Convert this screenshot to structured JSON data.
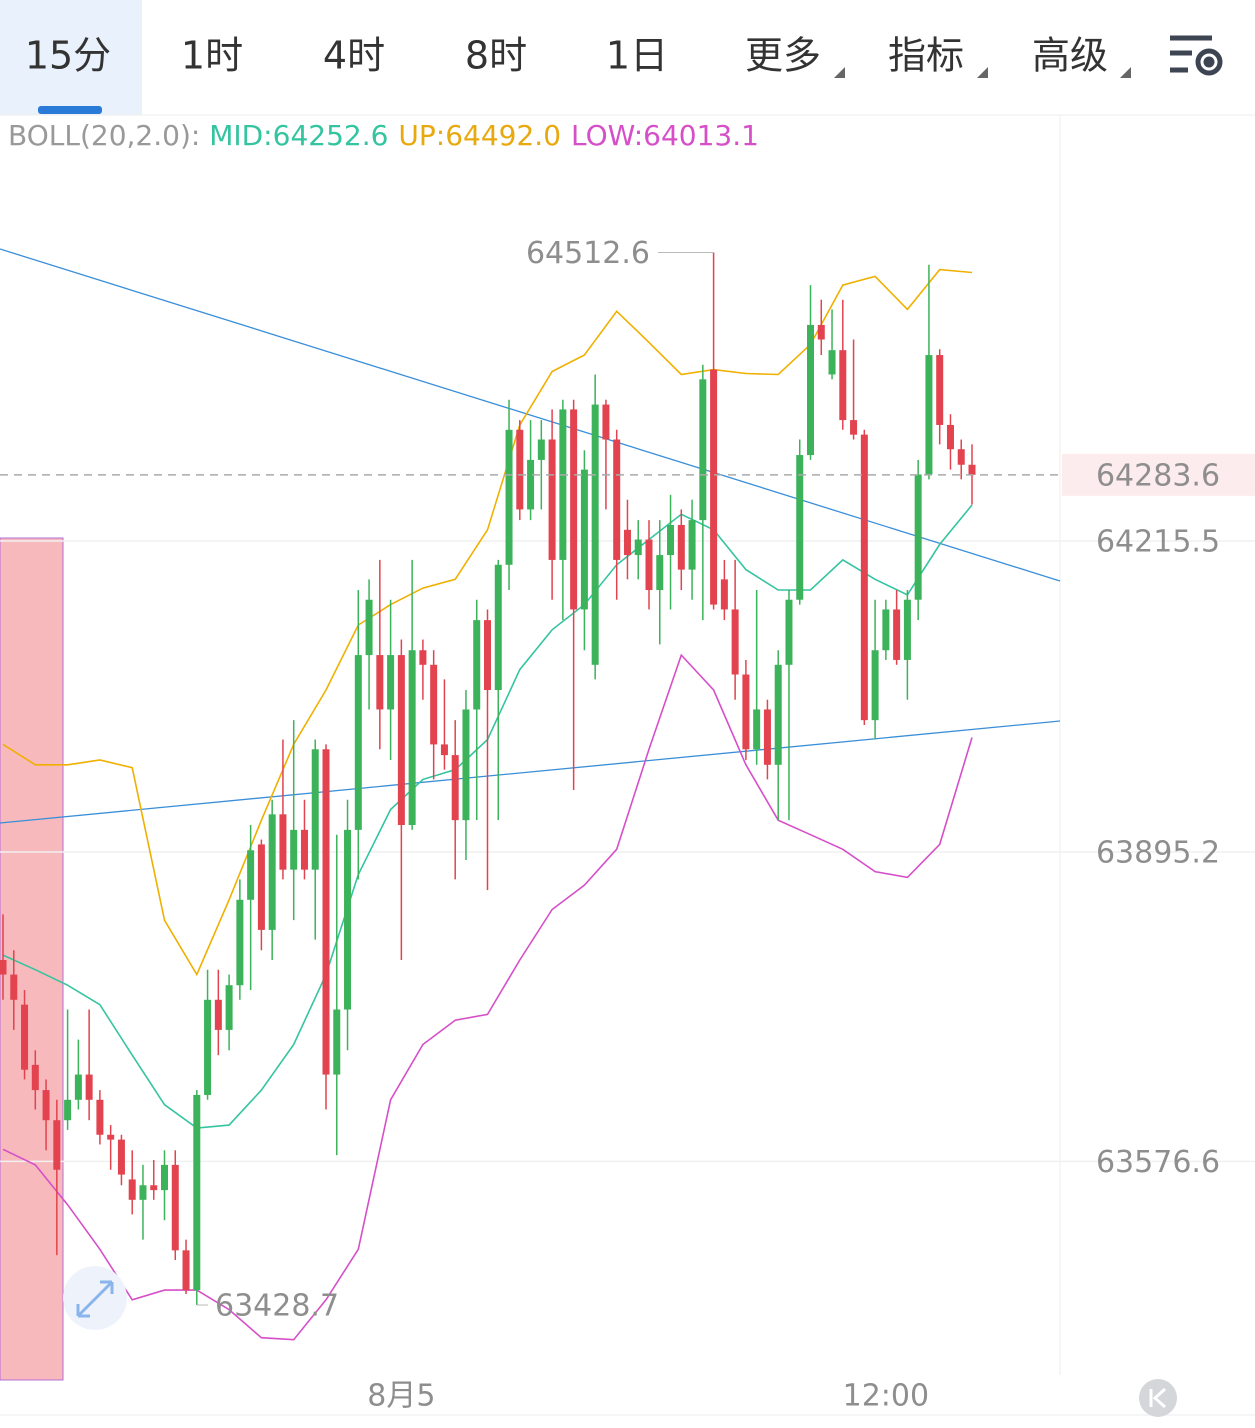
{
  "tabs": [
    "15分",
    "1时",
    "4时",
    "8时",
    "1日",
    "更多",
    "指标",
    "高级"
  ],
  "active_tab": 0,
  "readout": {
    "label": "BOLL(20,2.0):",
    "items": [
      {
        "name": "MID:",
        "value": "64252.6",
        "color": "#35c4a0"
      },
      {
        "name": "UP:",
        "value": "64492.0",
        "color": "#e8a90f"
      },
      {
        "name": "LOW:",
        "value": "64013.1",
        "color": "#d64fc8"
      }
    ]
  },
  "chart_data": {
    "type": "candlestick",
    "up_color": "#3cb35a",
    "down_color": "#e2434f",
    "ylim": [
      63356.6,
      64654.2
    ],
    "yticks": [
      64215.5,
      63895.2,
      63576.6
    ],
    "grid": true,
    "categories": [
      null,
      null,
      null,
      null,
      null,
      null,
      null,
      null,
      null,
      null,
      null,
      null,
      null,
      null,
      null,
      null,
      null,
      null,
      null,
      null,
      null,
      null,
      null,
      null,
      null,
      null,
      null,
      null,
      null,
      null,
      null,
      null,
      null,
      null,
      null,
      null,
      null,
      "8月5",
      null,
      null,
      null,
      null,
      null,
      null,
      null,
      null,
      null,
      null,
      null,
      null,
      null,
      null,
      null,
      null,
      null,
      null,
      null,
      null,
      null,
      null,
      null,
      null,
      null,
      null,
      null,
      null,
      null,
      null,
      null,
      null,
      null,
      null,
      null,
      null,
      null,
      null,
      null,
      null,
      null,
      null,
      null,
      null,
      "12:00",
      null,
      null,
      null,
      null,
      null,
      null,
      null,
      null
    ],
    "ohlc": [
      [
        63784,
        63831,
        63743,
        63769
      ],
      [
        63769,
        63794,
        63712,
        63743
      ],
      [
        63738,
        63753,
        63661,
        63671
      ],
      [
        63676,
        63691,
        63630,
        63650
      ],
      [
        63650,
        63661,
        63588,
        63619
      ],
      [
        63619,
        63640,
        63480,
        63568
      ],
      [
        63619,
        63733,
        63609,
        63640
      ],
      [
        63640,
        63702,
        63630,
        63666
      ],
      [
        63666,
        63733,
        63619,
        63640
      ],
      [
        63640,
        63650,
        63594,
        63604
      ],
      [
        63604,
        63614,
        63568,
        63599
      ],
      [
        63599,
        63604,
        63552,
        63563
      ],
      [
        63558,
        63588,
        63522,
        63537
      ],
      [
        63537,
        63573,
        63496,
        63552
      ],
      [
        63552,
        63578,
        63537,
        63547
      ],
      [
        63547,
        63588,
        63516,
        63573
      ],
      [
        63573,
        63588,
        63475,
        63485
      ],
      [
        63485,
        63496,
        63440,
        63444
      ],
      [
        63444,
        63650,
        63428.7,
        63645
      ],
      [
        63645,
        63774,
        63640,
        63743
      ],
      [
        63743,
        63774,
        63686,
        63712
      ],
      [
        63712,
        63769,
        63691,
        63758
      ],
      [
        63758,
        63867,
        63743,
        63846
      ],
      [
        63846,
        63923,
        63753,
        63897
      ],
      [
        63903,
        63908,
        63794,
        63815
      ],
      [
        63815,
        63949,
        63784,
        63934
      ],
      [
        63934,
        64011,
        63867,
        63877
      ],
      [
        63877,
        64031,
        63825,
        63918
      ],
      [
        63918,
        63949,
        63867,
        63877
      ],
      [
        63877,
        64011,
        63805,
        64001
      ],
      [
        64001,
        64006,
        63630,
        63666
      ],
      [
        63666,
        63913,
        63583,
        63733
      ],
      [
        63733,
        63949,
        63691,
        63918
      ],
      [
        63918,
        64165,
        63867,
        64098
      ],
      [
        64098,
        64176,
        64042,
        64155
      ],
      [
        64098,
        64196,
        64001,
        64042
      ],
      [
        64042,
        64155,
        63990,
        64098
      ],
      [
        64098,
        64114,
        63784,
        63923
      ],
      [
        63923,
        64196,
        63918,
        64103
      ],
      [
        64103,
        64114,
        64052,
        64088
      ],
      [
        64088,
        64103,
        63970,
        64006
      ],
      [
        64006,
        64073,
        63980,
        63995
      ],
      [
        63995,
        64031,
        63867,
        63928
      ],
      [
        63928,
        64062,
        63887,
        64042
      ],
      [
        64042,
        64155,
        63928,
        64134
      ],
      [
        64134,
        64145,
        63856,
        64062
      ],
      [
        64062,
        64196,
        63928,
        64191
      ],
      [
        64191,
        64361,
        64165,
        64330
      ],
      [
        64330,
        64340,
        64237,
        64248
      ],
      [
        64248,
        64340,
        64237,
        64299
      ],
      [
        64299,
        64340,
        64248,
        64320
      ],
      [
        64320,
        64351,
        64155,
        64196
      ],
      [
        64196,
        64361,
        64134,
        64351
      ],
      [
        64351,
        64361,
        63959,
        64145
      ],
      [
        64145,
        64309,
        64103,
        64289
      ],
      [
        64088,
        64387,
        64073,
        64356
      ],
      [
        64356,
        64361,
        64248,
        64320
      ],
      [
        64320,
        64330,
        64155,
        64196
      ],
      [
        64227,
        64258,
        64176,
        64201
      ],
      [
        64201,
        64237,
        64176,
        64217
      ],
      [
        64217,
        64237,
        64145,
        64165
      ],
      [
        64165,
        64237,
        64109,
        64201
      ],
      [
        64201,
        64263,
        64145,
        64232
      ],
      [
        64232,
        64248,
        64165,
        64186
      ],
      [
        64186,
        64258,
        64155,
        64237
      ],
      [
        64237,
        64397,
        64134,
        64382
      ],
      [
        64392,
        64512.6,
        64145,
        64150
      ],
      [
        64176,
        64196,
        64134,
        64145
      ],
      [
        64145,
        64196,
        64052,
        64078
      ],
      [
        64078,
        64093,
        63990,
        64001
      ],
      [
        64001,
        64165,
        63985,
        64042
      ],
      [
        64042,
        64052,
        63970,
        63985
      ],
      [
        63985,
        64103,
        63928,
        64088
      ],
      [
        64088,
        64165,
        63928,
        64155
      ],
      [
        64155,
        64320,
        64150,
        64304
      ],
      [
        64304,
        64479,
        64299,
        64438
      ],
      [
        64438,
        64464,
        64407,
        64423
      ],
      [
        64387,
        64454,
        64382,
        64412
      ],
      [
        64412,
        64464,
        64330,
        64340
      ],
      [
        64340,
        64423,
        64320,
        64325
      ],
      [
        64325,
        64330,
        64026,
        64031
      ],
      [
        64031,
        64155,
        64011,
        64103
      ],
      [
        64103,
        64155,
        64093,
        64145
      ],
      [
        64145,
        64165,
        64088,
        64093
      ],
      [
        64093,
        64165,
        64052,
        64155
      ],
      [
        64155,
        64299,
        64134,
        64284
      ],
      [
        64284,
        64500,
        64279,
        64407
      ],
      [
        64407,
        64413,
        64315,
        64335
      ],
      [
        64335,
        64346,
        64289,
        64310
      ],
      [
        64310,
        64320,
        64279,
        64294
      ],
      [
        64294,
        64315,
        64253,
        64283.6
      ]
    ],
    "bands": [
      {
        "color": "#35c4a0",
        "x": [
          0,
          3,
          6,
          9,
          12,
          15,
          18,
          21,
          24,
          27,
          30,
          33,
          36,
          39,
          42,
          45,
          48,
          51,
          54,
          57,
          60,
          63,
          66,
          69,
          72,
          75,
          78,
          81,
          84,
          87,
          90
        ],
        "values": [
          63789,
          63774,
          63758,
          63738,
          63686,
          63635,
          63611,
          63614,
          63650,
          63697,
          63769,
          63872,
          63939,
          63970,
          63980,
          64011,
          64083,
          64124,
          64150,
          64191,
          64217,
          64243,
          64227,
          64186,
          64165,
          64165,
          64196,
          64176,
          64160,
          64212,
          64252.6
        ]
      },
      {
        "color": "#f0b000",
        "x": [
          0,
          3,
          6,
          9,
          12,
          15,
          18,
          21,
          24,
          27,
          30,
          33,
          36,
          39,
          42,
          45,
          48,
          51,
          54,
          57,
          60,
          63,
          66,
          69,
          72,
          75,
          78,
          81,
          84,
          87,
          90
        ],
        "values": [
          64006,
          63985,
          63985,
          63990,
          63982,
          63825,
          63769,
          63846,
          63928,
          64006,
          64062,
          64129,
          64150,
          64167,
          64176,
          64227,
          64335,
          64390,
          64407,
          64452,
          64420,
          64387,
          64392,
          64388,
          64387,
          64418,
          64479,
          64488,
          64454,
          64495,
          64492.0
        ]
      },
      {
        "color": "#d64fc8",
        "x": [
          0,
          3,
          6,
          9,
          12,
          15,
          18,
          21,
          24,
          27,
          30,
          33,
          36,
          39,
          42,
          45,
          48,
          51,
          54,
          57,
          60,
          63,
          66,
          69,
          72,
          75,
          78,
          81,
          84,
          87,
          90
        ],
        "values": [
          63589,
          63573,
          63532,
          63486,
          63434,
          63444,
          63444,
          63424,
          63395,
          63393,
          63434,
          63486,
          63640,
          63697,
          63722,
          63728,
          63784,
          63836,
          63861,
          63898,
          64001,
          64098,
          64062,
          63985,
          63928,
          63913,
          63898,
          63875,
          63869,
          63903,
          64013.1
        ]
      }
    ]
  }
}
